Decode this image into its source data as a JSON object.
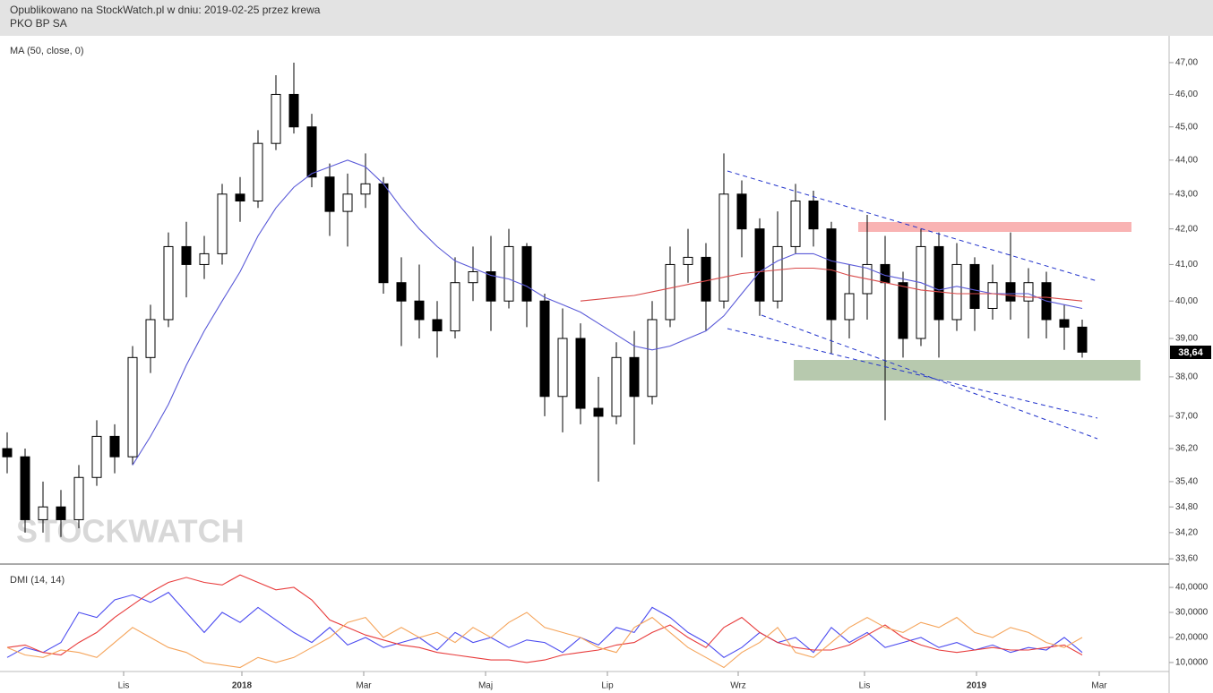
{
  "chart_data": [
    {
      "type": "candlestick",
      "title": "Opublikowano na StockWatch.pl w dniu: 2019-02-25 przez krewa",
      "subtitle": "PKO BP SA",
      "indicator_label": "MA (50, close, 0)",
      "watermark": "STOCKWATCH",
      "last_label": "38,64",
      "log_scale": true,
      "up_color": "#ffffff",
      "down_color": "#000000",
      "open": [
        36.2,
        36.0,
        34.5,
        34.8,
        34.5,
        35.5,
        36.5,
        36.0,
        38.5,
        39.5,
        41.5,
        41.0,
        41.3,
        43.0,
        42.8,
        44.5,
        46.0,
        45.0,
        43.5,
        42.5,
        43.0,
        43.3,
        40.5,
        40.0,
        39.5,
        39.2,
        40.5,
        40.8,
        40.0,
        41.5,
        40.0,
        37.5,
        39.0,
        37.2,
        37.0,
        38.5,
        37.5,
        39.5,
        41.0,
        41.2,
        40.0,
        43.0,
        42.0,
        40.0,
        41.5,
        42.8,
        42.0,
        39.5,
        40.2,
        41.0,
        40.5,
        39.0,
        41.5,
        39.5,
        41.0,
        39.8,
        40.5,
        40.0,
        40.5,
        39.5,
        39.3
      ],
      "high": [
        36.6,
        36.2,
        35.4,
        35.2,
        35.8,
        36.9,
        36.8,
        38.8,
        39.9,
        41.9,
        42.2,
        41.8,
        43.3,
        43.5,
        44.9,
        46.6,
        47.0,
        45.4,
        43.9,
        43.6,
        44.2,
        43.5,
        41.2,
        41.0,
        40.0,
        41.2,
        41.5,
        41.8,
        42.0,
        41.6,
        40.2,
        39.8,
        39.4,
        38.0,
        38.9,
        39.2,
        40.0,
        41.5,
        42.0,
        41.6,
        44.2,
        43.4,
        42.3,
        42.5,
        43.3,
        43.1,
        42.2,
        41.0,
        42.4,
        41.8,
        40.8,
        42.0,
        41.9,
        41.6,
        41.2,
        41.0,
        41.9,
        40.9,
        40.8,
        39.9,
        39.5
      ],
      "low": [
        35.6,
        34.2,
        34.2,
        34.1,
        34.3,
        35.3,
        35.6,
        35.8,
        38.1,
        39.3,
        40.1,
        40.6,
        41.0,
        42.2,
        42.6,
        44.3,
        44.8,
        43.2,
        41.8,
        41.5,
        42.6,
        40.2,
        38.8,
        39.0,
        38.5,
        39.0,
        40.0,
        39.2,
        39.8,
        39.3,
        37.0,
        36.6,
        36.8,
        35.4,
        36.8,
        36.3,
        37.3,
        39.3,
        40.5,
        39.2,
        39.8,
        41.2,
        39.6,
        39.8,
        41.3,
        41.5,
        38.6,
        39.0,
        39.5,
        36.9,
        38.5,
        38.8,
        38.5,
        39.2,
        39.2,
        39.5,
        39.5,
        39.0,
        39.0,
        38.7,
        38.5
      ],
      "close": [
        36.0,
        34.5,
        34.8,
        34.5,
        35.5,
        36.5,
        36.0,
        38.5,
        39.5,
        41.5,
        41.0,
        41.3,
        43.0,
        42.8,
        44.5,
        46.0,
        45.0,
        43.5,
        42.5,
        43.0,
        43.3,
        40.5,
        40.0,
        39.5,
        39.2,
        40.5,
        40.8,
        40.0,
        41.5,
        40.0,
        37.5,
        39.0,
        37.2,
        37.0,
        38.5,
        37.5,
        39.5,
        41.0,
        41.2,
        40.0,
        43.0,
        42.0,
        40.0,
        41.5,
        42.8,
        42.0,
        39.5,
        40.2,
        41.0,
        40.5,
        39.0,
        41.5,
        39.5,
        41.0,
        39.8,
        40.5,
        40.0,
        40.5,
        39.5,
        39.3,
        38.64
      ],
      "series": [
        {
          "color": "#5a5ad8",
          "values": [
            null,
            null,
            null,
            null,
            null,
            null,
            null,
            35.8,
            36.5,
            37.3,
            38.3,
            39.2,
            40.0,
            40.8,
            41.8,
            42.6,
            43.2,
            43.6,
            43.8,
            44.0,
            43.8,
            43.3,
            42.6,
            42.0,
            41.5,
            41.1,
            40.9,
            40.7,
            40.6,
            40.4,
            40.1,
            39.9,
            39.7,
            39.4,
            39.1,
            38.8,
            38.7,
            38.8,
            39.0,
            39.2,
            39.6,
            40.2,
            40.8,
            41.1,
            41.3,
            41.3,
            41.1,
            41.0,
            40.9,
            40.7,
            40.6,
            40.5,
            40.3,
            40.4,
            40.3,
            40.2,
            40.2,
            40.2,
            40.0,
            39.9,
            39.8
          ]
        },
        {
          "color": "#d94a4a",
          "values": [
            null,
            null,
            null,
            null,
            null,
            null,
            null,
            null,
            null,
            null,
            null,
            null,
            null,
            null,
            null,
            null,
            null,
            null,
            null,
            null,
            null,
            null,
            null,
            null,
            null,
            null,
            null,
            null,
            null,
            null,
            null,
            null,
            40.0,
            40.05,
            40.1,
            40.15,
            40.25,
            40.35,
            40.45,
            40.55,
            40.65,
            40.75,
            40.8,
            40.85,
            40.9,
            40.9,
            40.85,
            40.7,
            40.6,
            40.5,
            40.4,
            40.3,
            40.25,
            40.2,
            40.2,
            40.2,
            40.15,
            40.1,
            40.1,
            40.05,
            40.0
          ]
        }
      ],
      "ylim": [
        33.48,
        47.86
      ],
      "yticks": [
        {
          "value": 47,
          "label": "47,00"
        },
        {
          "value": 46,
          "label": "46,00"
        },
        {
          "value": 45,
          "label": "45,00"
        },
        {
          "value": 44,
          "label": "44,00"
        },
        {
          "value": 43,
          "label": "43,00"
        },
        {
          "value": 42,
          "label": "42,00"
        },
        {
          "value": 41,
          "label": "41,00"
        },
        {
          "value": 40,
          "label": "40,00"
        },
        {
          "value": 39,
          "label": "39,00"
        },
        {
          "value": 38,
          "label": "38,00"
        },
        {
          "value": 37,
          "label": "37,00"
        },
        {
          "value": 36.2,
          "label": "36,20"
        },
        {
          "value": 35.4,
          "label": "35,40"
        },
        {
          "value": 34.8,
          "label": "34,80"
        },
        {
          "value": 34.2,
          "label": "34,20"
        },
        {
          "value": 33.6,
          "label": "33,60"
        }
      ],
      "xlim": [
        -0.4,
        64.85
      ],
      "xticks": [
        {
          "value": 6.5,
          "label": "Lis"
        },
        {
          "value": 13.1,
          "label": "2018"
        },
        {
          "value": 19.9,
          "label": "Mar"
        },
        {
          "value": 26.7,
          "label": "Maj"
        },
        {
          "value": 33.5,
          "label": "Lip"
        },
        {
          "value": 40.8,
          "label": "Wrz"
        },
        {
          "value": 47.85,
          "label": "Lis"
        },
        {
          "value": 54.1,
          "label": "2019"
        },
        {
          "value": 60.95,
          "label": "Mar"
        }
      ]
    },
    {
      "type": "line",
      "indicator_label": "DMI (14, 14)",
      "series": [
        {
          "color": "#4b4bf0",
          "values": [
            12,
            16,
            14,
            18,
            30,
            28,
            35,
            37,
            34,
            38,
            30,
            22,
            30,
            26,
            32,
            27,
            22,
            18,
            24,
            17,
            20,
            16,
            18,
            20,
            15,
            22,
            18,
            20,
            16,
            19,
            18,
            14,
            20,
            17,
            24,
            22,
            32,
            28,
            22,
            18,
            12,
            16,
            22,
            18,
            20,
            14,
            24,
            18,
            22,
            16,
            18,
            20,
            16,
            18,
            15,
            17,
            14,
            16,
            15,
            20,
            14
          ]
        },
        {
          "color": "#e83c3c",
          "values": [
            16,
            17,
            14,
            13,
            18,
            22,
            28,
            33,
            38,
            42,
            44,
            42,
            41,
            45,
            42,
            39,
            40,
            35,
            27,
            24,
            21,
            19,
            17,
            16,
            14,
            13,
            12,
            11,
            11,
            10,
            11,
            13,
            14,
            15,
            17,
            18,
            22,
            25,
            20,
            16,
            24,
            28,
            22,
            18,
            16,
            15,
            15,
            17,
            21,
            25,
            20,
            17,
            15,
            14,
            15,
            16,
            15,
            15,
            16,
            17,
            13
          ]
        },
        {
          "color": "#f5a45a",
          "values": [
            16,
            13,
            12,
            15,
            14,
            12,
            18,
            24,
            20,
            16,
            14,
            10,
            9,
            8,
            12,
            10,
            12,
            16,
            20,
            26,
            28,
            20,
            24,
            20,
            22,
            18,
            24,
            20,
            26,
            30,
            24,
            22,
            20,
            16,
            14,
            24,
            28,
            22,
            16,
            12,
            8,
            14,
            18,
            24,
            14,
            12,
            18,
            24,
            28,
            24,
            22,
            26,
            24,
            28,
            22,
            20,
            24,
            22,
            18,
            16,
            20
          ]
        }
      ],
      "ylim": [
        6.4,
        48.6
      ],
      "yticks": [
        {
          "value": 40,
          "label": "40,0000"
        },
        {
          "value": 30,
          "label": "30,0000"
        },
        {
          "value": 20,
          "label": "20,0000"
        },
        {
          "value": 10,
          "label": "10,0000"
        }
      ]
    }
  ]
}
